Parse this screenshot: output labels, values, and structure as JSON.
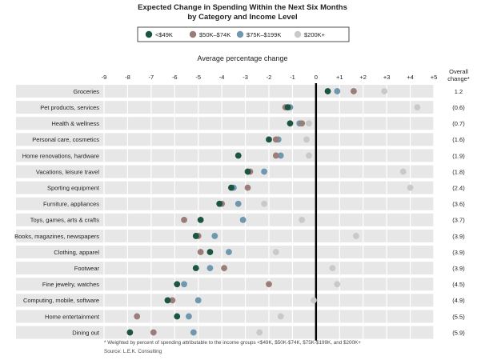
{
  "chart_data": {
    "type": "dot",
    "title_line1": "Expected Change in Spending Within the Next Six Months",
    "title_line2": "by Category and Income Level",
    "subtitle": "Average percentage change",
    "overall_header_line1": "Overall",
    "overall_header_line2": "change*",
    "xlim": [
      -9,
      5
    ],
    "x_ticks": [
      "-9",
      "-8",
      "-7",
      "-6",
      "-5",
      "-4",
      "-3",
      "-2",
      "-1",
      "0",
      "+1",
      "+2",
      "+3",
      "+4",
      "+5"
    ],
    "series": [
      {
        "name": "<$49K",
        "color": "#1b5441"
      },
      {
        "name": "$50K–$74K",
        "color": "#9a7d78"
      },
      {
        "name": "$75K–$199K",
        "color": "#6f97ae"
      },
      {
        "name": "$200K+",
        "color": "#c9c9c9"
      }
    ],
    "categories": [
      {
        "label": "Groceries",
        "overall": "1.2",
        "values": [
          0.5,
          1.6,
          0.9,
          2.9
        ]
      },
      {
        "label": "Pet products, services",
        "overall": "(0.6)",
        "values": [
          -1.2,
          -1.3,
          -1.1,
          4.3
        ]
      },
      {
        "label": "Health & wellness",
        "overall": "(0.7)",
        "values": [
          -1.1,
          -0.6,
          -0.7,
          -0.3
        ]
      },
      {
        "label": "Personal care, cosmetics",
        "overall": "(1.6)",
        "values": [
          -2.0,
          -1.7,
          -1.6,
          -0.4
        ]
      },
      {
        "label": "Home renovations, hardware",
        "overall": "(1.9)",
        "values": [
          -3.3,
          -1.7,
          -1.5,
          -0.3
        ]
      },
      {
        "label": "Vacations, leisure travel",
        "overall": "(1.8)",
        "values": [
          -2.9,
          -2.8,
          -2.2,
          3.7
        ]
      },
      {
        "label": "Sporting equipment",
        "overall": "(2.4)",
        "values": [
          -3.6,
          -2.9,
          -3.5,
          4.0
        ]
      },
      {
        "label": "Furniture, appliances",
        "overall": "(3.6)",
        "values": [
          -4.1,
          -4.0,
          -3.3,
          -2.2
        ]
      },
      {
        "label": "Toys, games, arts & crafts",
        "overall": "(3.7)",
        "values": [
          -4.9,
          -5.6,
          -3.1,
          -0.6
        ]
      },
      {
        "label": "Books, magazines, newspapers",
        "overall": "(3.9)",
        "values": [
          -5.1,
          -5.0,
          -4.3,
          1.7
        ]
      },
      {
        "label": "Clothing, apparel",
        "overall": "(3.9)",
        "values": [
          -4.5,
          -4.9,
          -3.7,
          -1.7
        ]
      },
      {
        "label": "Footwear",
        "overall": "(3.9)",
        "values": [
          -5.1,
          -3.9,
          -4.5,
          0.7
        ]
      },
      {
        "label": "Fine jewelry, watches",
        "overall": "(4.5)",
        "values": [
          -5.9,
          -2.0,
          -5.6,
          0.9
        ]
      },
      {
        "label": "Computing, mobile, software",
        "overall": "(4.9)",
        "values": [
          -6.3,
          -6.1,
          -5.0,
          -0.1
        ]
      },
      {
        "label": "Home entertainment",
        "overall": "(5.5)",
        "values": [
          -5.9,
          -7.6,
          -5.4,
          -1.5
        ]
      },
      {
        "label": "Dining out",
        "overall": "(5.9)",
        "values": [
          -7.9,
          -6.9,
          -5.2,
          -2.4
        ]
      }
    ],
    "footnote": "* Weighted by percent of spending attributable to the income groups <$49K, $50K-$74K, $75K-$199K, and $200K+",
    "source": "Source:  L.E.K. Consulting"
  }
}
